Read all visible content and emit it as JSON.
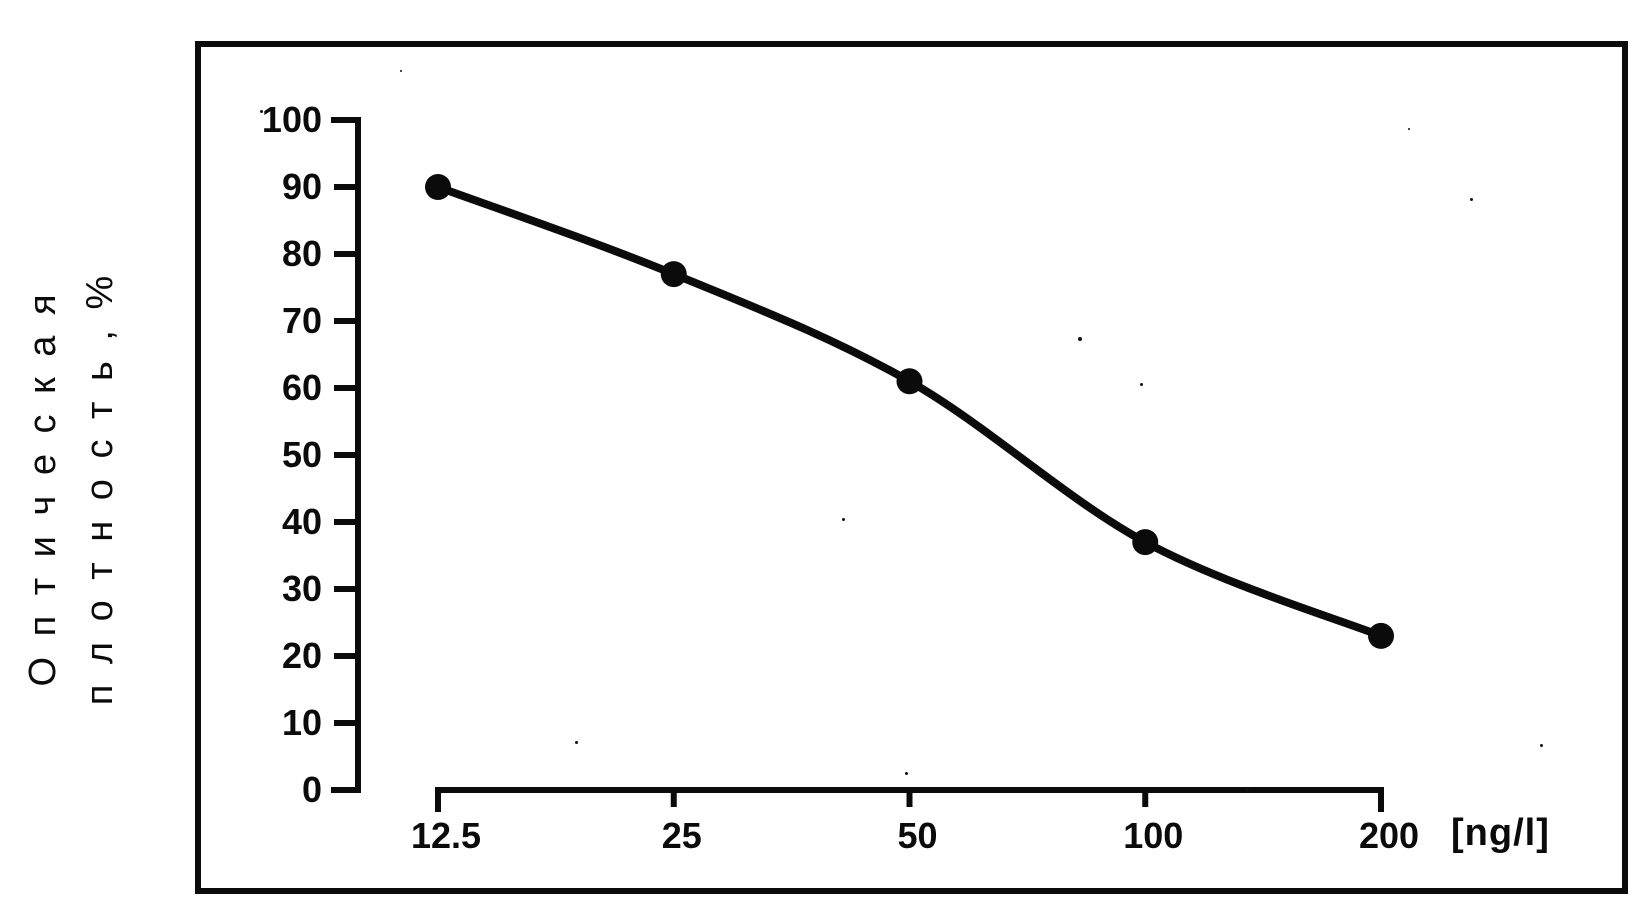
{
  "figure": {
    "y_axis_title_line1": "О п т и ч е с к а я",
    "y_axis_title_line2": "п л о т н о с т ь , %",
    "x_axis_unit": "[ng/l]"
  },
  "chart_data": {
    "type": "line",
    "title": "",
    "x": [
      12.5,
      25,
      50,
      100,
      200
    ],
    "x_tick_labels": [
      "12.5",
      "25",
      "50",
      "100",
      "200"
    ],
    "values": [
      90,
      77,
      61,
      37,
      23
    ],
    "points": [
      [
        12.5,
        90
      ],
      [
        25,
        77
      ],
      [
        50,
        61
      ],
      [
        100,
        37
      ],
      [
        200,
        23
      ]
    ],
    "xlabel": "[ng/l]",
    "ylabel": "Оптическая плотность, %",
    "x_scale": "log2 (equal spacing per doubling of concentration)",
    "ylim": [
      0,
      100
    ],
    "y_ticks": [
      0,
      10,
      20,
      30,
      40,
      50,
      60,
      70,
      80,
      90,
      100
    ],
    "grid": false,
    "legend": "none",
    "marker": "filled-circle",
    "line_style": "solid smooth curve",
    "colors": {
      "ink": "#0b0b0b",
      "background": "#ffffff"
    }
  }
}
